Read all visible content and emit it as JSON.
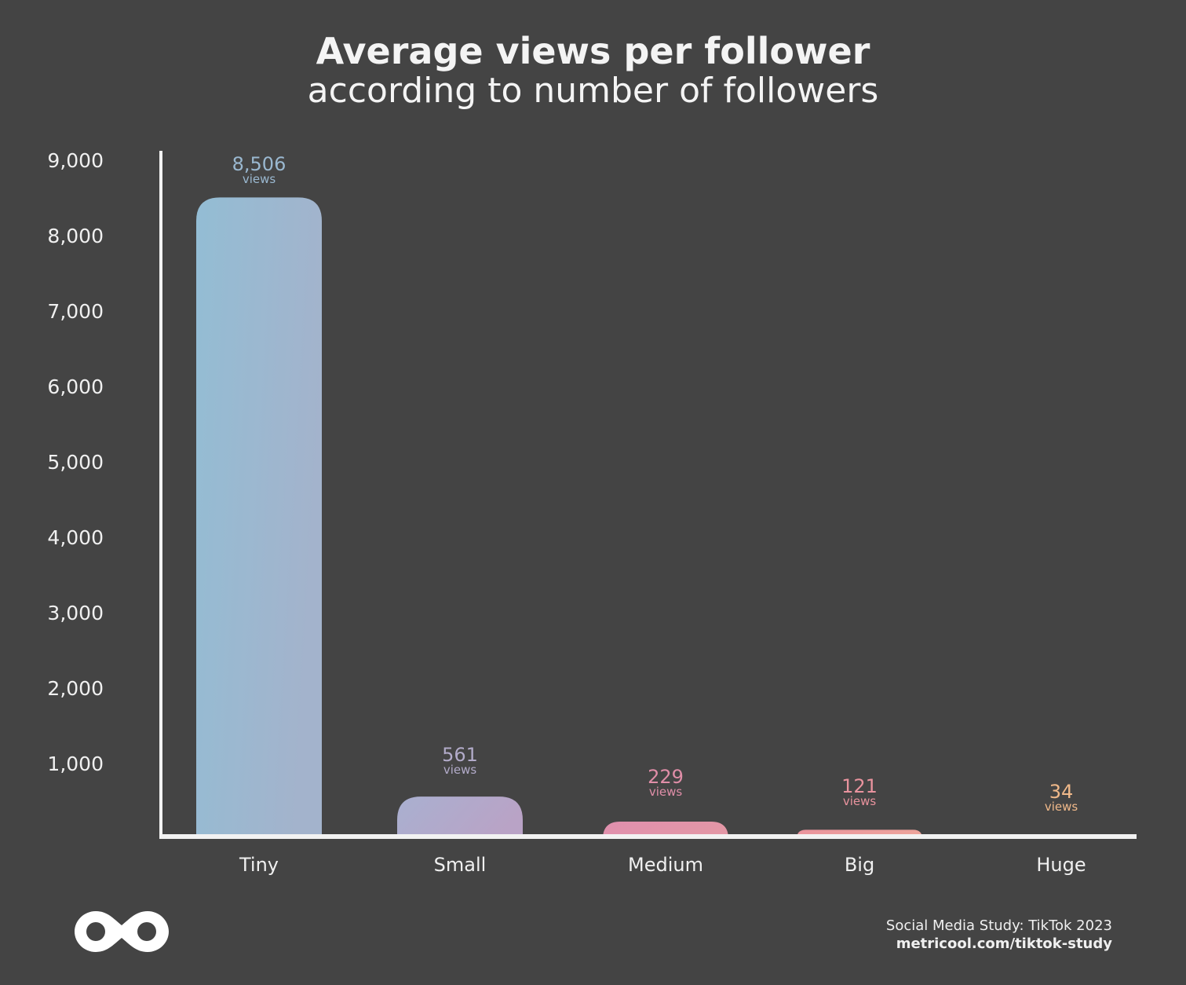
{
  "chart_data": {
    "type": "bar",
    "title": "Average views per follower",
    "subtitle": "according to number of followers",
    "categories": [
      "Tiny",
      "Small",
      "Medium",
      "Big",
      "Huge"
    ],
    "values": [
      8506,
      561,
      229,
      121,
      34
    ],
    "value_labels": [
      "8,506",
      "561",
      "229",
      "121",
      "34"
    ],
    "unit_label": "views",
    "ylim": [
      0,
      9000
    ],
    "yticks": [
      "1,000",
      "2,000",
      "3,000",
      "4,000",
      "5,000",
      "6,000",
      "7,000",
      "8,000",
      "9,000"
    ],
    "ytick_values": [
      1000,
      2000,
      3000,
      4000,
      5000,
      6000,
      7000,
      8000,
      9000
    ],
    "grid": false,
    "colors": [
      [
        "#93bdd4",
        "#a3b3cc"
      ],
      [
        "#a9b0d0",
        "#b9a3c6"
      ],
      [
        "#e08fae",
        "#e397a6"
      ],
      [
        "#e9939d",
        "#eda49b"
      ],
      [
        "#f0a890",
        "#f4c48c"
      ]
    ],
    "label_colors": [
      "#9ab8d0",
      "#b2abc9",
      "#e08ea8",
      "#e9939e",
      "#f0b98a"
    ]
  },
  "footer": {
    "source_line1": "Social Media Study: TikTok 2023",
    "source_line2": "metricool.com/tiktok-study",
    "logo": "metricool-infinity-logo"
  }
}
